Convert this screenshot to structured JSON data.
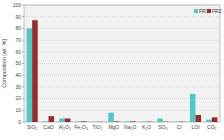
{
  "chart_data": {
    "type": "bar",
    "y_label": "Composition [wt. %]",
    "categories": [
      "SiO₂",
      "CaO",
      "Al₂O₃",
      "Fe₂O₃",
      "TiO₂",
      "MgO",
      "Na₂O",
      "K₂O",
      "SO₃",
      "Cl",
      "LOI",
      "CO₂"
    ],
    "series": [
      {
        "name": "FR1",
        "color": "#4fc8c8",
        "values": [
          80,
          0.5,
          3,
          0.5,
          0.2,
          8,
          0.5,
          0.3,
          3,
          0.2,
          24,
          2
        ]
      },
      {
        "name": "FR2",
        "color": "#9b2b2b",
        "values": [
          87,
          5,
          3,
          0.5,
          0.2,
          0.5,
          0.5,
          0.3,
          0.3,
          0.3,
          6,
          4
        ]
      }
    ],
    "ylim": [
      0,
      100
    ],
    "yticks": [
      0,
      10,
      20,
      30,
      40,
      50,
      60,
      70,
      80,
      90,
      100
    ],
    "grid": true,
    "legend": "top-right"
  }
}
